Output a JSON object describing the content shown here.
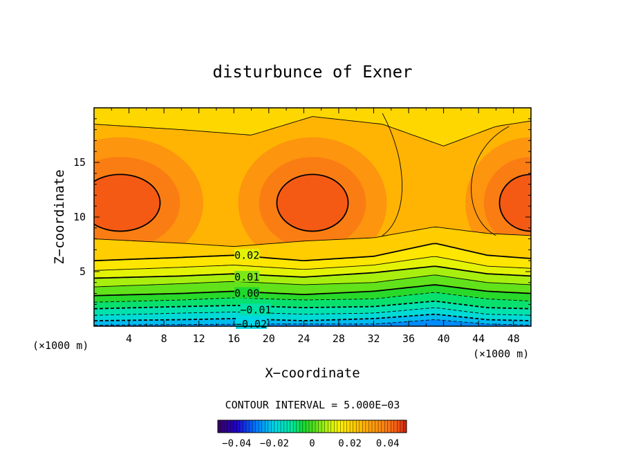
{
  "chart_data": {
    "type": "heatmap",
    "title": "disturbunce of Exner",
    "xlabel": "X−coordinate",
    "ylabel": "Z−coordinate",
    "x_unit_left": "(×1000 m)",
    "x_unit_right": "(×1000 m)",
    "xlim": [
      0,
      50
    ],
    "ylim": [
      0,
      20
    ],
    "x_ticks": [
      "4",
      "8",
      "12",
      "16",
      "20",
      "24",
      "28",
      "32",
      "36",
      "40",
      "44",
      "48"
    ],
    "y_ticks": [
      "5",
      "10",
      "15"
    ],
    "contour_interval_text": "CONTOUR INTERVAL = 5.000E−03",
    "contour_labels": [
      {
        "text": "0.02",
        "x": 17.5,
        "z": 6.5
      },
      {
        "text": "0.01",
        "x": 17.5,
        "z": 4.5
      },
      {
        "text": "0.00",
        "x": 17.5,
        "z": 3.0
      },
      {
        "text": "−0.01",
        "x": 18.5,
        "z": 1.5
      },
      {
        "text": "−0.02",
        "x": 18.0,
        "z": 0.2
      }
    ],
    "colorbar": {
      "range": [
        -0.05,
        0.05
      ],
      "tick_labels": [
        "−0.04",
        "−0.02",
        "0",
        "0.02",
        "0.04"
      ]
    },
    "field_description_values": {
      "min_near_surface": -0.03,
      "max_core": 0.045,
      "core_centers_x": [
        3,
        25,
        50
      ],
      "core_center_z": 11.3
    }
  }
}
